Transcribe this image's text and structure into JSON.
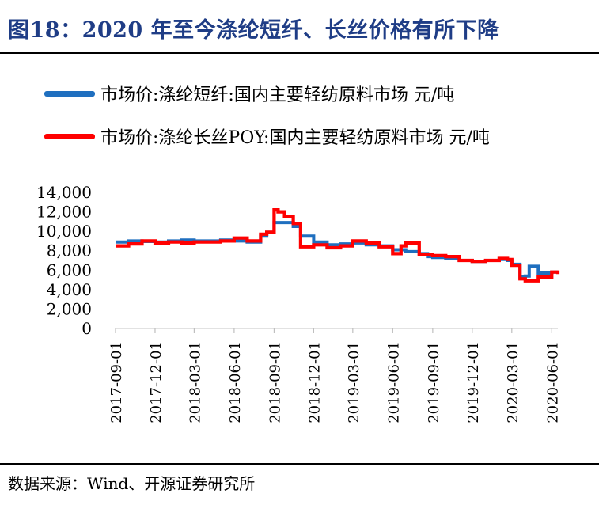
{
  "figure": {
    "title": "图18：2020 年至今涤纶短纤、长丝价格有所下降",
    "source": "数据来源：Wind、开源证券研究所"
  },
  "chart_data": {
    "type": "line",
    "title": "",
    "xlabel": "",
    "ylabel": "",
    "ylim": [
      0,
      14000
    ],
    "yticks": [
      0,
      2000,
      4000,
      6000,
      8000,
      10000,
      12000,
      14000
    ],
    "ytick_labels": [
      "0",
      "2,000",
      "4,000",
      "6,000",
      "8,000",
      "10,000",
      "12,000",
      "14,000"
    ],
    "xlim": [
      "2017-09-01",
      "2020-06-15"
    ],
    "xticks": [
      "2017-09-01",
      "2017-12-01",
      "2018-03-01",
      "2018-06-01",
      "2018-09-01",
      "2018-12-01",
      "2019-03-01",
      "2019-06-01",
      "2019-09-01",
      "2019-12-01",
      "2020-03-01",
      "2020-06-01"
    ],
    "grid": false,
    "legend_position": "top",
    "series": [
      {
        "name": "市场价:涤纶短纤:国内主要轻纺原料市场 元/吨",
        "color": "#1f6fbf",
        "x": [
          "2017-09-01",
          "2017-10-01",
          "2017-11-01",
          "2017-12-01",
          "2018-01-01",
          "2018-02-01",
          "2018-03-01",
          "2018-04-01",
          "2018-05-01",
          "2018-06-01",
          "2018-07-01",
          "2018-08-01",
          "2018-08-15",
          "2018-09-01",
          "2018-09-20",
          "2018-10-15",
          "2018-11-01",
          "2018-12-01",
          "2019-01-01",
          "2019-02-01",
          "2019-03-01",
          "2019-04-01",
          "2019-05-01",
          "2019-06-01",
          "2019-07-01",
          "2019-08-01",
          "2019-08-20",
          "2019-09-01",
          "2019-10-01",
          "2019-11-01",
          "2019-12-01",
          "2020-01-01",
          "2020-02-01",
          "2020-02-20",
          "2020-03-01",
          "2020-03-20",
          "2020-04-01",
          "2020-04-10",
          "2020-05-01",
          "2020-06-01",
          "2020-06-15"
        ],
        "values": [
          8900,
          9000,
          8950,
          8900,
          9000,
          9100,
          9000,
          9000,
          9100,
          9000,
          8900,
          9500,
          9900,
          10900,
          10900,
          10500,
          9500,
          8900,
          8600,
          8700,
          8800,
          8600,
          8500,
          8100,
          7900,
          7700,
          7400,
          7300,
          7200,
          7000,
          6900,
          7000,
          7100,
          7000,
          6600,
          5300,
          5400,
          6400,
          5700,
          5800,
          5900
        ]
      },
      {
        "name": "市场价:涤纶长丝POY:国内主要轻纺原料市场 元/吨",
        "color": "#ff0000",
        "x": [
          "2017-09-01",
          "2017-10-01",
          "2017-11-01",
          "2017-12-01",
          "2018-01-01",
          "2018-02-01",
          "2018-03-01",
          "2018-04-01",
          "2018-05-01",
          "2018-06-01",
          "2018-07-01",
          "2018-08-01",
          "2018-08-15",
          "2018-09-01",
          "2018-09-10",
          "2018-09-25",
          "2018-10-15",
          "2018-11-01",
          "2018-12-01",
          "2019-01-01",
          "2019-02-01",
          "2019-03-01",
          "2019-04-01",
          "2019-05-01",
          "2019-06-01",
          "2019-06-20",
          "2019-07-01",
          "2019-08-01",
          "2019-09-01",
          "2019-10-01",
          "2019-11-01",
          "2019-12-01",
          "2020-01-01",
          "2020-02-01",
          "2020-02-20",
          "2020-03-01",
          "2020-03-20",
          "2020-04-01",
          "2020-05-01",
          "2020-06-01",
          "2020-06-15"
        ],
        "values": [
          8500,
          8700,
          9000,
          8800,
          8900,
          8800,
          8900,
          8900,
          9000,
          9300,
          9000,
          9700,
          9900,
          12200,
          12000,
          11500,
          10800,
          8400,
          8600,
          8300,
          8500,
          9000,
          8800,
          8400,
          7700,
          8500,
          8800,
          7600,
          7500,
          7400,
          7000,
          6900,
          7000,
          7200,
          7100,
          6500,
          5100,
          4900,
          5300,
          5800,
          5600
        ]
      }
    ]
  }
}
